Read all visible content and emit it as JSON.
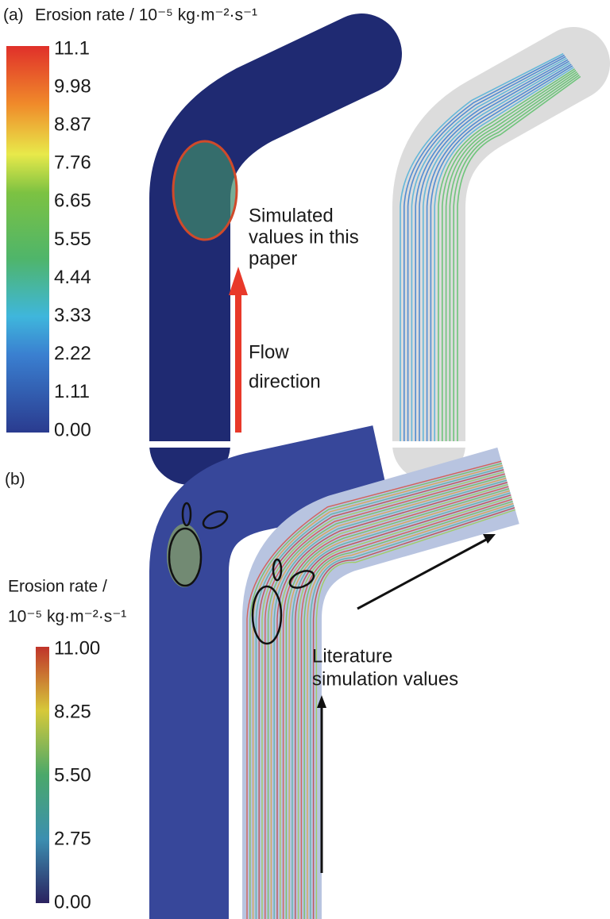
{
  "panels": [
    {
      "label": "(a)",
      "colorbar": {
        "title": "Erosion rate / 10⁻⁵ kg·m⁻²·s⁻¹",
        "ticks": [
          "11.1",
          "9.98",
          "8.87",
          "7.76",
          "6.65",
          "5.55",
          "4.44",
          "3.33",
          "2.22",
          "1.11",
          "0.00"
        ]
      },
      "annotations": [
        {
          "lines": [
            "Simulated",
            "values in this",
            "paper"
          ]
        },
        {
          "lines": [
            "Flow",
            "direction"
          ]
        }
      ]
    },
    {
      "label": "(b)",
      "colorbar": {
        "title_lines": [
          "Erosion rate /",
          "10⁻⁵ kg·m⁻²·s⁻¹"
        ],
        "ticks": [
          "11.00",
          "8.25",
          "5.50",
          "2.75",
          "0.00"
        ]
      },
      "annotations": [
        {
          "lines": [
            "Literature",
            "simulation values"
          ]
        }
      ]
    }
  ]
}
